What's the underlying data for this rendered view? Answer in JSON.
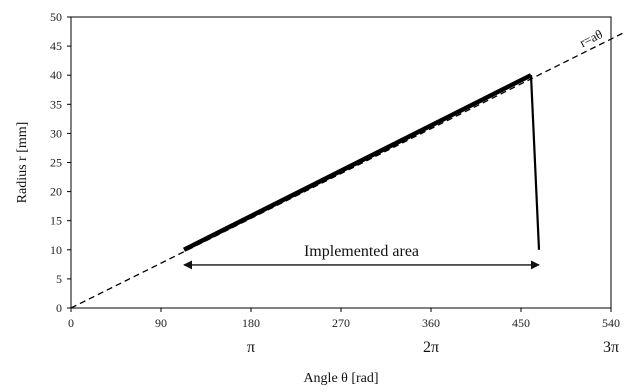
{
  "chart_data": {
    "type": "line",
    "xlabel": "Angle θ [rad]",
    "ylabel": "Radius r [mm]",
    "xlim": [
      0,
      540
    ],
    "ylim": [
      0,
      50
    ],
    "xticks": [
      0,
      90,
      180,
      270,
      360,
      450,
      540
    ],
    "yticks": [
      0,
      5,
      10,
      15,
      20,
      25,
      30,
      35,
      40,
      45,
      50
    ],
    "pi_ticks": [
      {
        "x": 180,
        "label": "π"
      },
      {
        "x": 360,
        "label": "2π"
      },
      {
        "x": 540,
        "label": "3π"
      }
    ],
    "grid": false,
    "series": [
      {
        "style": "dashed",
        "points": [
          [
            0,
            0
          ],
          [
            555,
            47.5
          ]
        ]
      },
      {
        "style": "thick",
        "points": [
          [
            113,
            10
          ],
          [
            460,
            40
          ]
        ]
      },
      {
        "style": "solid",
        "points": [
          [
            460,
            40
          ],
          [
            468,
            10
          ]
        ]
      }
    ],
    "annotations": {
      "curve_label": "r=aθ",
      "range_label": "Implemented area",
      "range_x": [
        113,
        468
      ],
      "range_y": 7.4
    }
  }
}
